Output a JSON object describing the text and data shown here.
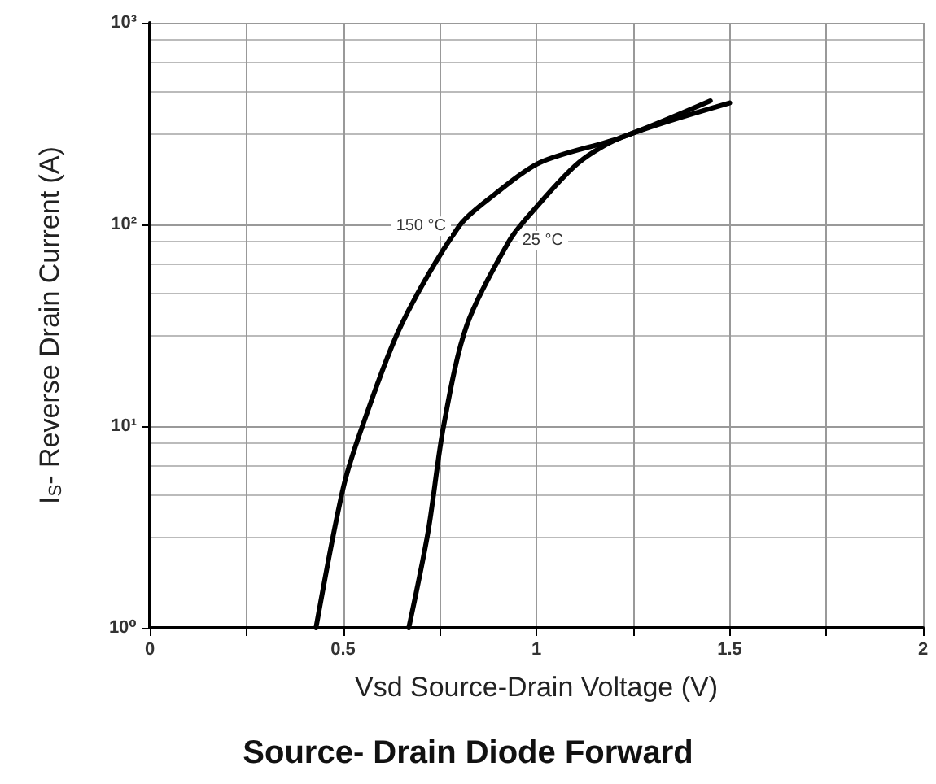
{
  "chart_data": {
    "type": "line",
    "title": "Source- Drain Diode Forward",
    "xlabel": "Vsd Source-Drain Voltage (V)",
    "ylabel": "I$_{S}$- Reverse Drain Current (A)",
    "log": "y",
    "grid": true,
    "marker": "none",
    "line_style": "solid",
    "xlim": [
      0,
      2
    ],
    "xticks": [
      0,
      {
        "value": 0.25,
        "label": null
      },
      0.5,
      {
        "value": 0.75,
        "label": null
      },
      1,
      {
        "value": 1.25,
        "label": null
      },
      1.5,
      {
        "value": 1.75,
        "label": null
      },
      2
    ],
    "ylim": [
      1,
      1000
    ],
    "yticks": [
      {
        "value": 1,
        "label": "10⁰"
      },
      {
        "value": 10,
        "label": "10¹"
      },
      {
        "value": 100,
        "label": "10²"
      },
      {
        "value": 1000,
        "label": "10³"
      }
    ],
    "series": [
      {
        "name": "150 °C",
        "color": "#000000",
        "x": [
          0.43,
          0.5,
          0.55,
          0.65,
          0.8,
          0.89,
          1.01,
          1.22,
          1.45
        ],
        "values": [
          1,
          4.9,
          10,
          31.6,
          98,
          140,
          203,
          270,
          410
        ]
      },
      {
        "name": "25 °C",
        "color": "#000000",
        "x": [
          0.67,
          0.72,
          0.76,
          0.82,
          0.93,
          0.99,
          1.11,
          1.22,
          1.5
        ],
        "values": [
          1,
          3,
          10,
          31.6,
          83,
          116,
          203,
          270,
          400
        ]
      }
    ]
  }
}
